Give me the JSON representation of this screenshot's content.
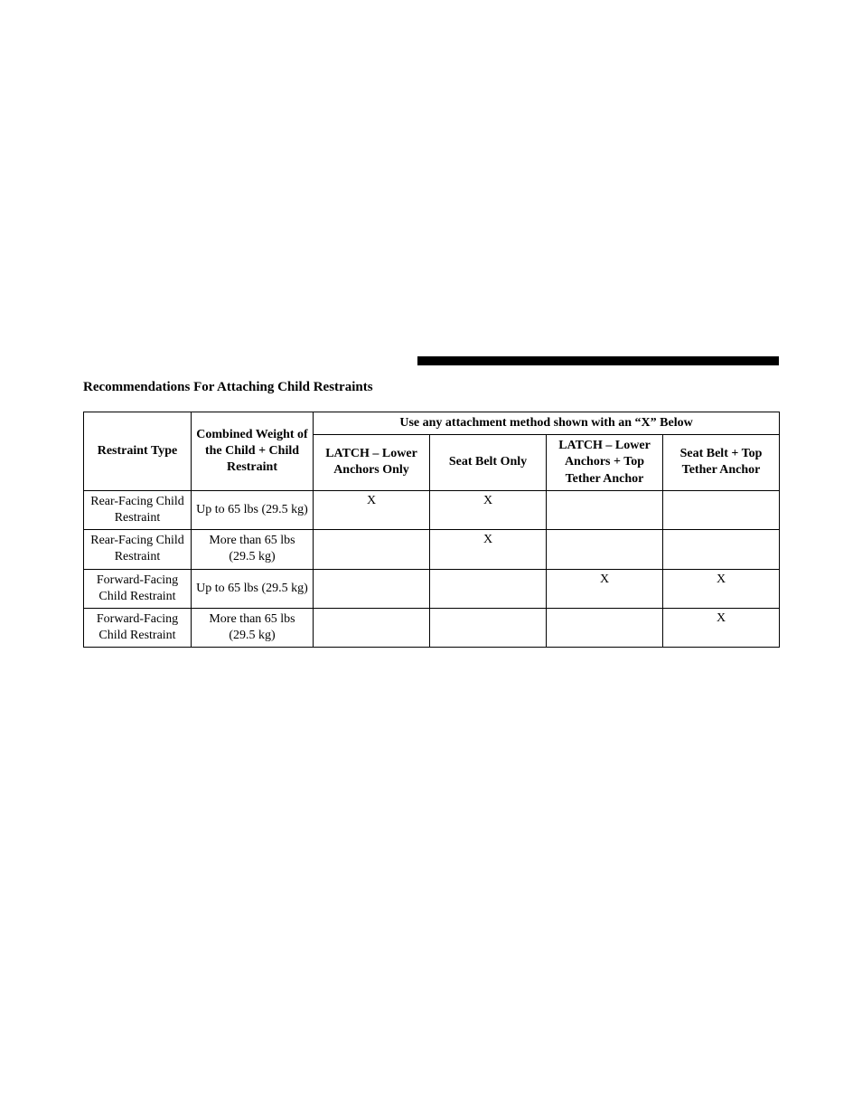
{
  "section_title": "Recommendations For Attaching Child Restraints",
  "table": {
    "headers": {
      "restraint_type": "Restraint Type",
      "combined_weight": "Combined Weight of the Child + Child Restraint",
      "span_header": "Use any attachment method shown with an “X” Below",
      "method1": "LATCH – Lower Anchors Only",
      "method2": "Seat Belt Only",
      "method3": "LATCH – Lower Anchors + Top Tether Anchor",
      "method4": "Seat Belt + Top Tether Anchor"
    },
    "rows": [
      {
        "restraint": "Rear-Facing Child Restraint",
        "weight": "Up to 65 lbs (29.5 kg)",
        "m1": "X",
        "m2": "X",
        "m3": "",
        "m4": ""
      },
      {
        "restraint": "Rear-Facing Child Restraint",
        "weight": "More than 65 lbs (29.5 kg)",
        "m1": "",
        "m2": "X",
        "m3": "",
        "m4": ""
      },
      {
        "restraint": "Forward-Facing Child Restraint",
        "weight": "Up to 65 lbs (29.5 kg)",
        "m1": "",
        "m2": "",
        "m3": "X",
        "m4": "X"
      },
      {
        "restraint": "Forward-Facing Child Restraint",
        "weight": "More than 65 lbs (29.5 kg)",
        "m1": "",
        "m2": "",
        "m3": "",
        "m4": "X"
      }
    ]
  },
  "style": {
    "bg": "#ffffff",
    "text": "#000000",
    "border": "#000000",
    "bar": "#000000",
    "title_fontsize": 15,
    "cell_fontsize": 14
  }
}
